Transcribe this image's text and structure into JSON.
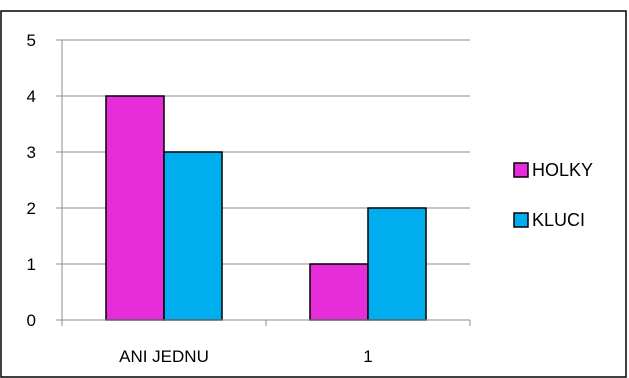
{
  "chart_data": {
    "type": "bar",
    "title": "",
    "xlabel": "",
    "ylabel": "",
    "categories": [
      "ANI JEDNU",
      "1"
    ],
    "series": [
      {
        "name": "HOLKY",
        "values": [
          4,
          1
        ],
        "color": "#E52DD9"
      },
      {
        "name": "KLUCI",
        "values": [
          3,
          2
        ],
        "color": "#00AEEF"
      }
    ],
    "ylim": [
      0,
      5
    ],
    "yticks": [
      0,
      1,
      2,
      3,
      4,
      5
    ],
    "grid": true,
    "legend": "right"
  }
}
